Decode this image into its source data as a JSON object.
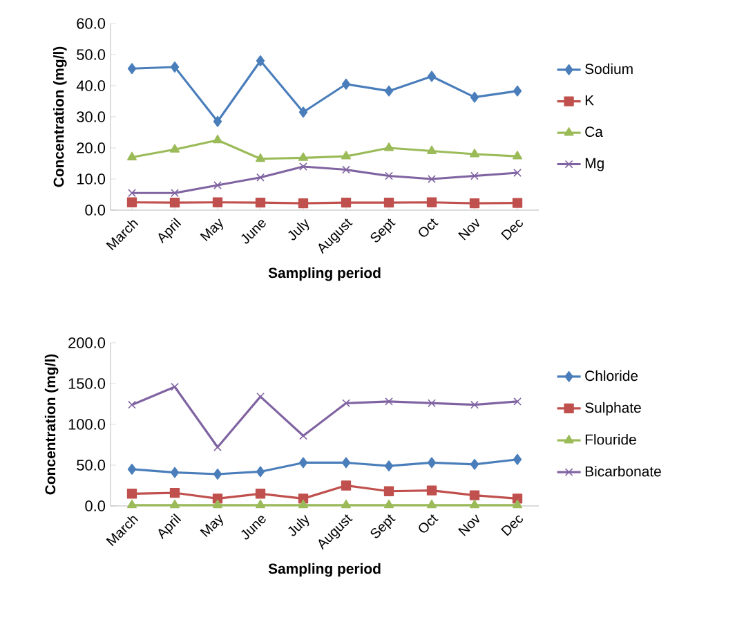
{
  "chart_data": [
    {
      "type": "line",
      "xlabel": "Sampling period",
      "ylabel": "Concentration (mg/l)",
      "categories": [
        "March",
        "April",
        "May",
        "June",
        "July",
        "August",
        "Sept",
        "Oct",
        "Nov",
        "Dec"
      ],
      "series": [
        {
          "name": "Sodium",
          "color": "#4a7ebb",
          "marker": "diamond",
          "values": [
            45.5,
            46,
            28.5,
            48,
            31.5,
            40.5,
            38.3,
            43,
            36.3,
            38.3
          ]
        },
        {
          "name": "K",
          "color": "#c0504d",
          "marker": "square",
          "values": [
            2.5,
            2.4,
            2.5,
            2.4,
            2.2,
            2.4,
            2.4,
            2.5,
            2.2,
            2.3
          ]
        },
        {
          "name": "Ca",
          "color": "#9bbb59",
          "marker": "triangle",
          "values": [
            17,
            19.5,
            22.5,
            16.5,
            16.8,
            17.3,
            20,
            19,
            18,
            17.3
          ]
        },
        {
          "name": "Mg",
          "color": "#8064a2",
          "marker": "cross",
          "values": [
            5.5,
            5.5,
            8,
            10.5,
            14,
            13,
            11,
            10,
            11,
            12
          ]
        }
      ],
      "ylim": [
        0,
        60
      ],
      "yticks": [
        {
          "value": 0,
          "label": "0.0"
        },
        {
          "value": 10,
          "label": "10.0"
        },
        {
          "value": 20,
          "label": "20.0"
        },
        {
          "value": 30,
          "label": "30.0"
        },
        {
          "value": 40,
          "label": "40.0"
        },
        {
          "value": 50,
          "label": "50.0"
        },
        {
          "value": 60,
          "label": "60.0"
        }
      ],
      "legend": "right"
    },
    {
      "type": "line",
      "xlabel": "Sampling period",
      "ylabel": "Concentration (mg/l)",
      "categories": [
        "March",
        "April",
        "May",
        "June",
        "July",
        "August",
        "Sept",
        "Oct",
        "Nov",
        "Dec"
      ],
      "series": [
        {
          "name": "Chloride",
          "color": "#4a7ebb",
          "marker": "diamond",
          "values": [
            45,
            41,
            39,
            42,
            53,
            53,
            49,
            53,
            51,
            57
          ]
        },
        {
          "name": "Sulphate",
          "color": "#c0504d",
          "marker": "square",
          "values": [
            15,
            16,
            9,
            15,
            9,
            25,
            18,
            19,
            13,
            9
          ]
        },
        {
          "name": "Flouride",
          "color": "#9bbb59",
          "marker": "triangle",
          "values": [
            1,
            1,
            1,
            1,
            1,
            1,
            1,
            1,
            1,
            1
          ]
        },
        {
          "name": "Bicarbonate",
          "color": "#8064a2",
          "marker": "cross",
          "values": [
            124,
            146,
            72,
            134,
            86,
            126,
            128,
            126,
            124,
            128
          ]
        }
      ],
      "ylim": [
        0,
        200
      ],
      "yticks": [
        {
          "value": 0,
          "label": "0.0"
        },
        {
          "value": 50,
          "label": "50.0"
        },
        {
          "value": 100,
          "label": "100.0"
        },
        {
          "value": 150,
          "label": "150.0"
        },
        {
          "value": 200,
          "label": "200.0"
        }
      ],
      "legend": "right"
    }
  ]
}
